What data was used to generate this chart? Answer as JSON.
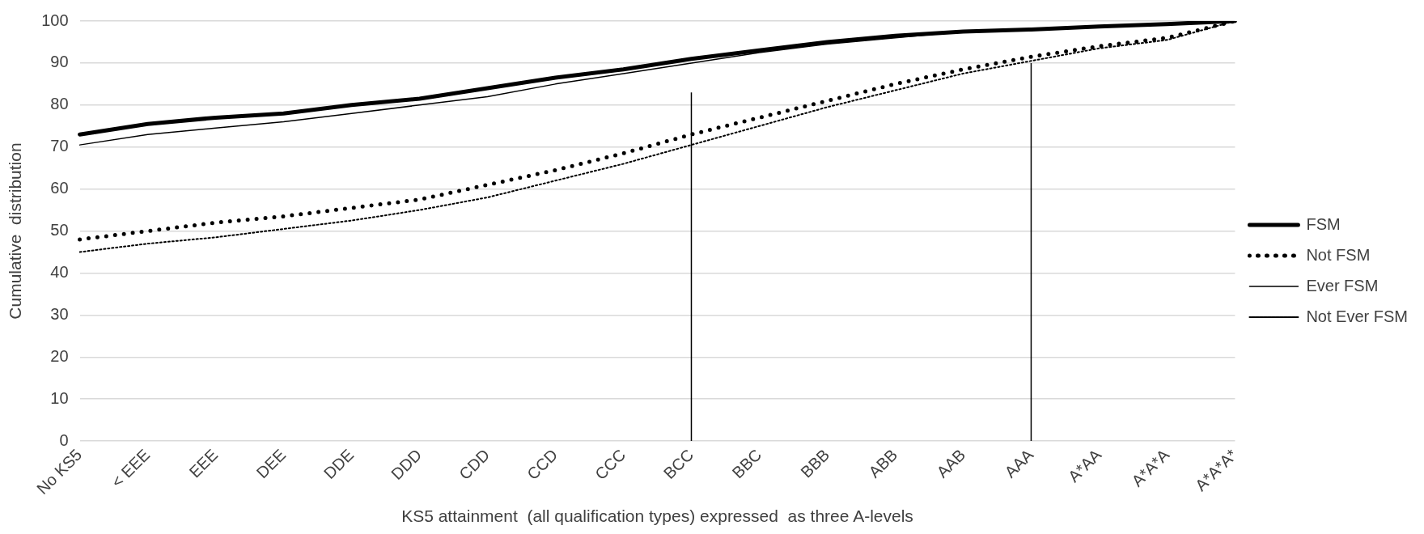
{
  "chart_data": {
    "type": "line",
    "xlabel": "KS5 attainment  (all qualification types) expressed  as three A-levels",
    "ylabel": "Cumulative  distribution",
    "categories": [
      "No KS5",
      "< EEE",
      "EEE",
      "DEE",
      "DDE",
      "DDD",
      "CDD",
      "CCD",
      "CCC",
      "BCC",
      "BBC",
      "BBB",
      "ABB",
      "AAB",
      "AAA",
      "A*AA",
      "A*A*A",
      "A*A*A*"
    ],
    "series": [
      {
        "name": "FSM",
        "color": "#000000",
        "line_style": "solid",
        "values": [
          73,
          75.5,
          77,
          78,
          80,
          81.5,
          84,
          86.5,
          88.5,
          91,
          93,
          95,
          96.5,
          97.5,
          98,
          98.7,
          99.3,
          100
        ]
      },
      {
        "name": "Not FSM",
        "color": "#000000",
        "line_style": "dotted",
        "values": [
          48,
          50,
          52,
          53.5,
          55.5,
          57.5,
          61,
          64.5,
          68.5,
          73,
          77,
          81,
          85,
          88.5,
          91.5,
          94,
          96,
          100
        ]
      },
      {
        "name": "Ever FSM",
        "color": "#000000",
        "line_style": "solid",
        "values": [
          70.5,
          73,
          74.5,
          76,
          78,
          80,
          82,
          85,
          87.5,
          90,
          92.5,
          94.5,
          96,
          97.5,
          98,
          98.7,
          99.3,
          100
        ]
      },
      {
        "name": "Not Ever FSM",
        "color": "#000000",
        "line_style": "dotted",
        "values": [
          45,
          47,
          48.5,
          50.5,
          52.5,
          55,
          58,
          62,
          66,
          70.5,
          75,
          79.5,
          83.5,
          87.5,
          90.5,
          93.5,
          95.5,
          100
        ]
      }
    ],
    "ylim": [
      0,
      100
    ],
    "yticks": [
      0,
      10,
      20,
      30,
      40,
      50,
      60,
      70,
      80,
      90,
      100
    ],
    "ref_lines": [
      {
        "axis": "x",
        "value": "BCC",
        "color": "#000000"
      },
      {
        "axis": "x",
        "value": "AAA",
        "color": "#000000"
      }
    ],
    "grid": "y",
    "legend": "right",
    "marker": "none"
  }
}
